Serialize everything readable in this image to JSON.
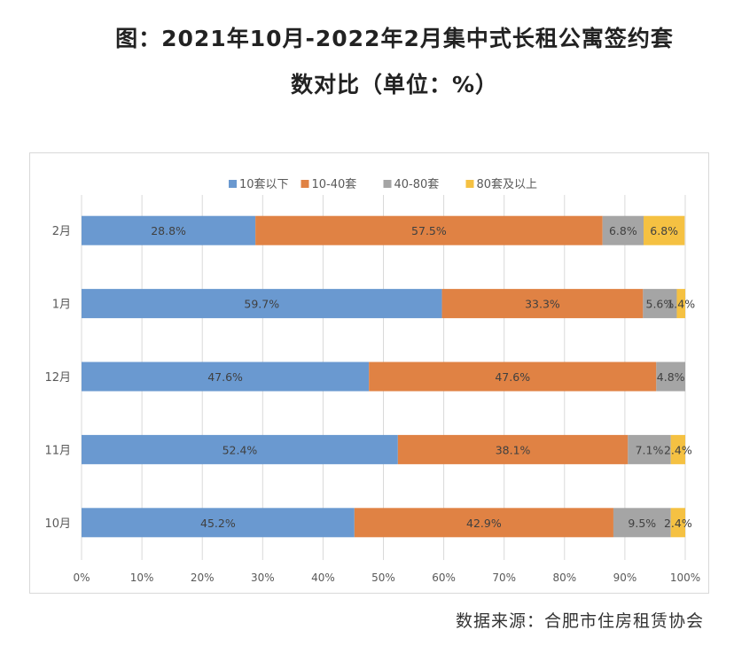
{
  "title_line1": "图：2021年10月-2022年2月集中式长租公寓签约套",
  "title_line2": "数对比（单位：%）",
  "source": "数据来源：合肥市住房租赁协会",
  "chart_data": {
    "type": "bar",
    "orientation": "horizontal",
    "stacked": "percent",
    "categories": [
      "2月",
      "1月",
      "12月",
      "11月",
      "10月"
    ],
    "series": [
      {
        "name": "10套以下",
        "color": "#6a99d0",
        "values": [
          28.8,
          59.7,
          47.6,
          52.4,
          45.2
        ],
        "labels": [
          "28.8%",
          "59.7%",
          "47.6%",
          "52.4%",
          "45.2%"
        ]
      },
      {
        "name": "10-40套",
        "color": "#e08244",
        "values": [
          57.5,
          33.3,
          47.6,
          38.1,
          42.9
        ],
        "labels": [
          "57.5%",
          "33.3%",
          "47.6%",
          "38.1%",
          "42.9%"
        ]
      },
      {
        "name": "40-80套",
        "color": "#a5a5a5",
        "values": [
          6.8,
          5.6,
          4.8,
          7.1,
          9.5
        ],
        "labels": [
          "6.8%",
          "5.6%",
          "4.8%",
          "7.1%",
          "9.5%"
        ]
      },
      {
        "name": "80套及以上",
        "color": "#f5c142",
        "values": [
          6.8,
          1.4,
          0,
          2.4,
          2.4
        ],
        "labels": [
          "6.8%",
          "1.4%",
          "",
          "2.4%",
          "2.4%"
        ]
      }
    ],
    "xticks": [
      "0%",
      "10%",
      "20%",
      "30%",
      "40%",
      "50%",
      "60%",
      "70%",
      "80%",
      "90%",
      "100%"
    ],
    "xlim": [
      0,
      100
    ],
    "grid": true,
    "legend": "top-center"
  }
}
